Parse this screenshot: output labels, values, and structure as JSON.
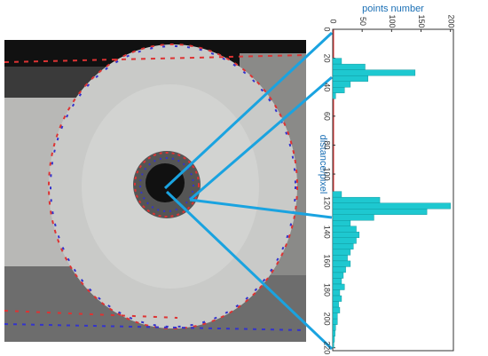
{
  "chart_data": {
    "type": "histogram",
    "orientation": "horizontal",
    "title": "points number",
    "y_label": "distance/pixel",
    "bins": [
      20,
      24,
      28,
      32,
      36,
      40,
      44,
      48,
      52,
      56,
      60,
      64,
      68,
      72,
      76,
      80,
      84,
      88,
      92,
      96,
      100,
      104,
      108,
      112,
      116,
      120,
      124,
      128,
      132,
      136,
      140,
      144,
      148,
      152,
      156,
      160,
      164,
      168,
      172,
      176,
      180,
      184,
      188,
      192,
      196,
      200,
      204,
      208,
      212,
      216,
      220
    ],
    "values": [
      15,
      55,
      140,
      60,
      30,
      20,
      5,
      0,
      0,
      0,
      0,
      0,
      0,
      0,
      0,
      0,
      0,
      0,
      0,
      0,
      0,
      0,
      0,
      15,
      80,
      200,
      160,
      70,
      30,
      40,
      45,
      40,
      35,
      30,
      25,
      30,
      22,
      18,
      15,
      20,
      12,
      15,
      10,
      12,
      8,
      8,
      5,
      4,
      3,
      2
    ],
    "color": "#1ec8d0",
    "xlim": [
      0,
      205
    ],
    "xticks": [
      0,
      50,
      100,
      150,
      200
    ],
    "ylim": [
      0,
      222
    ],
    "yticks": [
      0,
      20,
      40,
      60,
      80,
      100,
      120,
      140,
      160,
      180,
      200,
      220
    ]
  }
}
